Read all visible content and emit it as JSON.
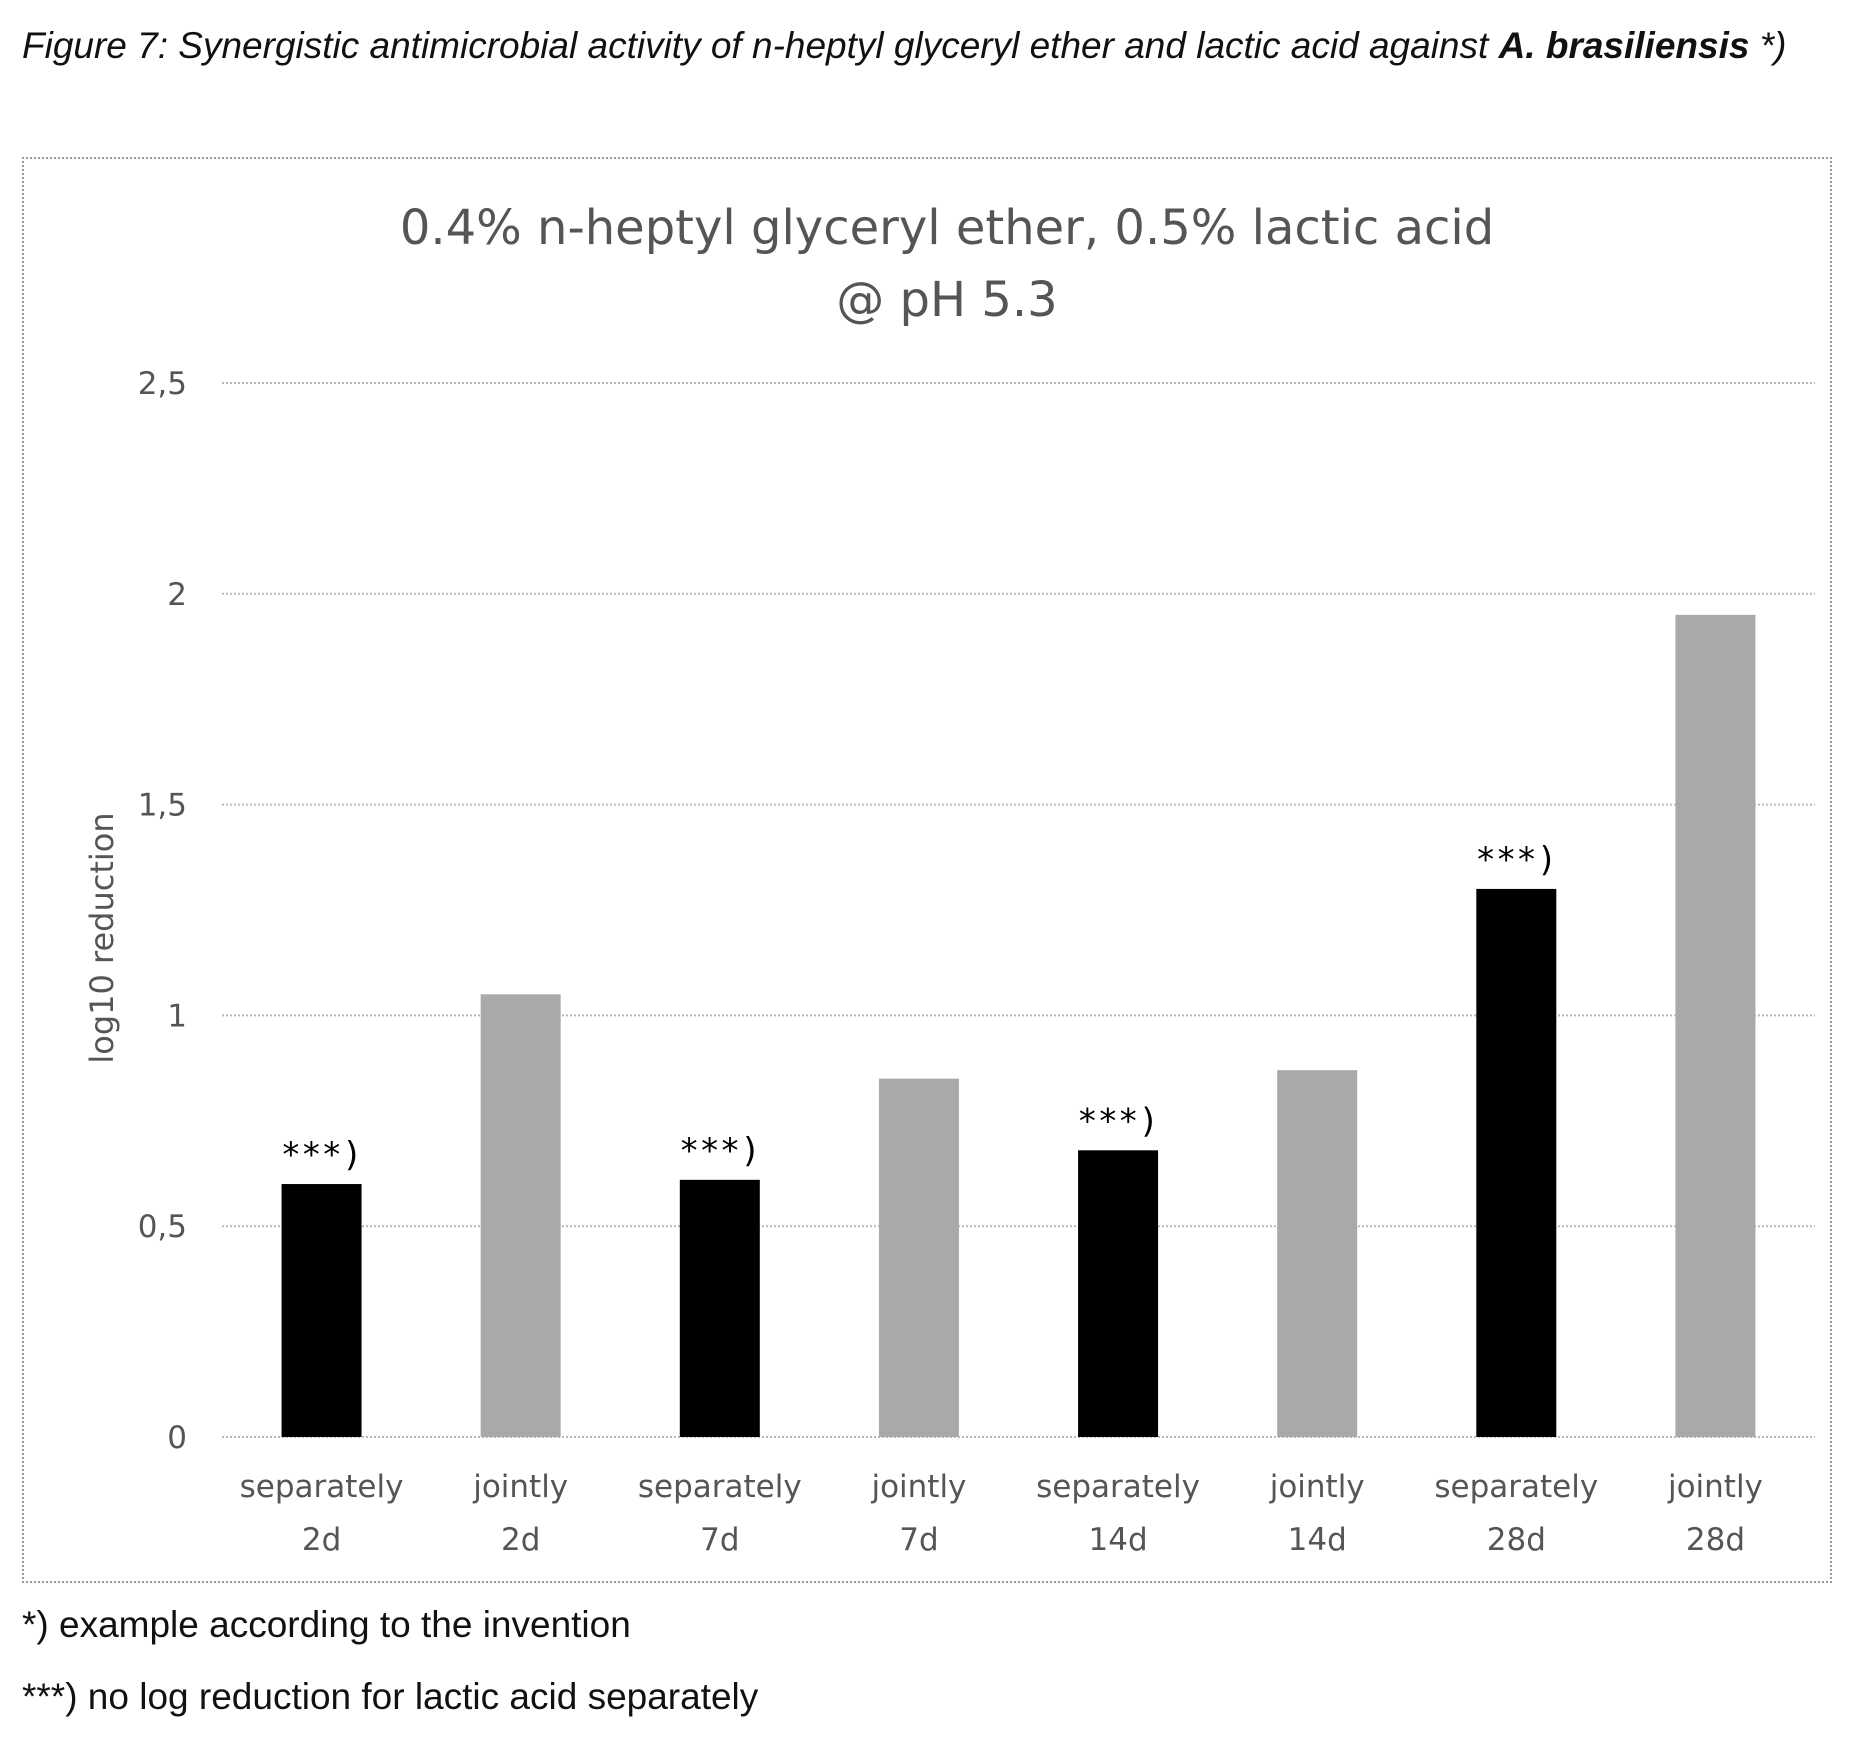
{
  "figure": {
    "caption_prefix": "Figure 7: Synergistic antimicrobial activity of n-heptyl glyceryl ether and lactic acid against ",
    "caption_bold": "A. brasiliensis",
    "caption_suffix": " *)"
  },
  "footnotes": {
    "note1": "*) example according to the invention",
    "note2": "***) no log reduction for lactic acid separately"
  },
  "chart_data": {
    "type": "bar",
    "title": "0.4% n-heptyl glyceryl ether, 0.5% lactic acid",
    "subtitle": "@ pH 5.3",
    "xlabel": "",
    "ylabel": "log10 reduction",
    "ylim": [
      0,
      2.5
    ],
    "yticks": [
      "0",
      "0,5",
      "1",
      "1,5",
      "2",
      "2,5"
    ],
    "grid": true,
    "categories": [
      [
        "separately",
        "2d"
      ],
      [
        "jointly",
        "2d"
      ],
      [
        "separately",
        "7d"
      ],
      [
        "jointly",
        "7d"
      ],
      [
        "separately",
        "14d"
      ],
      [
        "jointly",
        "14d"
      ],
      [
        "separately",
        "28d"
      ],
      [
        "jointly",
        "28d"
      ]
    ],
    "values": [
      0.6,
      1.05,
      0.61,
      0.85,
      0.68,
      0.87,
      1.3,
      1.95
    ],
    "bar_colors": [
      "#000000",
      "#a9a9a9",
      "#000000",
      "#a9a9a9",
      "#000000",
      "#a9a9a9",
      "#000000",
      "#a9a9a9"
    ],
    "annotations": [
      "***)",
      "",
      "***)",
      "",
      "***)",
      "",
      "***)",
      ""
    ],
    "colors": {
      "separately": "#000000",
      "jointly": "#a9a9a9",
      "grid": "#b8b8b8",
      "text": "#555555"
    }
  }
}
